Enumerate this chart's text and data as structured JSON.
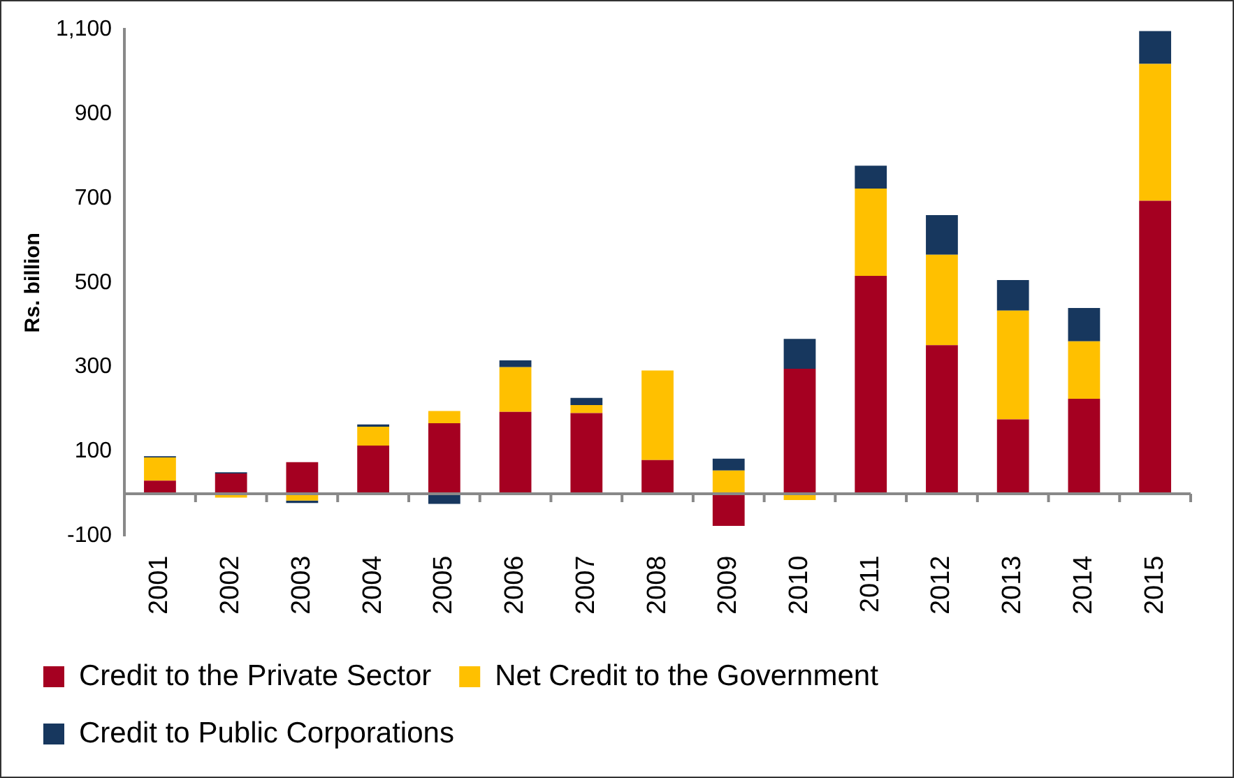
{
  "chart_data": {
    "type": "bar",
    "stacked": true,
    "ylabel": "Rs. billion",
    "categories": [
      "2001",
      "2002",
      "2003",
      "2004",
      "2005",
      "2006",
      "2007",
      "2008",
      "2009",
      "2010",
      "2011",
      "2012",
      "2013",
      "2014",
      "2015"
    ],
    "series": [
      {
        "name": "Credit to the Private Sector",
        "color": "#a50021",
        "values": [
          31,
          48,
          75,
          114,
          167,
          194,
          191,
          80,
          -76,
          296,
          516,
          352,
          176,
          225,
          694
        ]
      },
      {
        "name": "Net Credit to the Government",
        "color": "#ffc000",
        "values": [
          55,
          -9,
          -16,
          45,
          29,
          106,
          19,
          212,
          55,
          -15,
          207,
          214,
          258,
          136,
          324
        ]
      },
      {
        "name": "Credit to Public Corporations",
        "color": "#17375e",
        "values": [
          3,
          3,
          -6,
          5,
          -24,
          16,
          17,
          0,
          28,
          71,
          54,
          94,
          72,
          79,
          78
        ]
      }
    ],
    "ylim": [
      -100,
      1100
    ],
    "yticks": [
      -100,
      100,
      300,
      500,
      700,
      900,
      {
        "value": 1100,
        "label": "1,100"
      }
    ],
    "grid": false,
    "legend": "bottom"
  }
}
